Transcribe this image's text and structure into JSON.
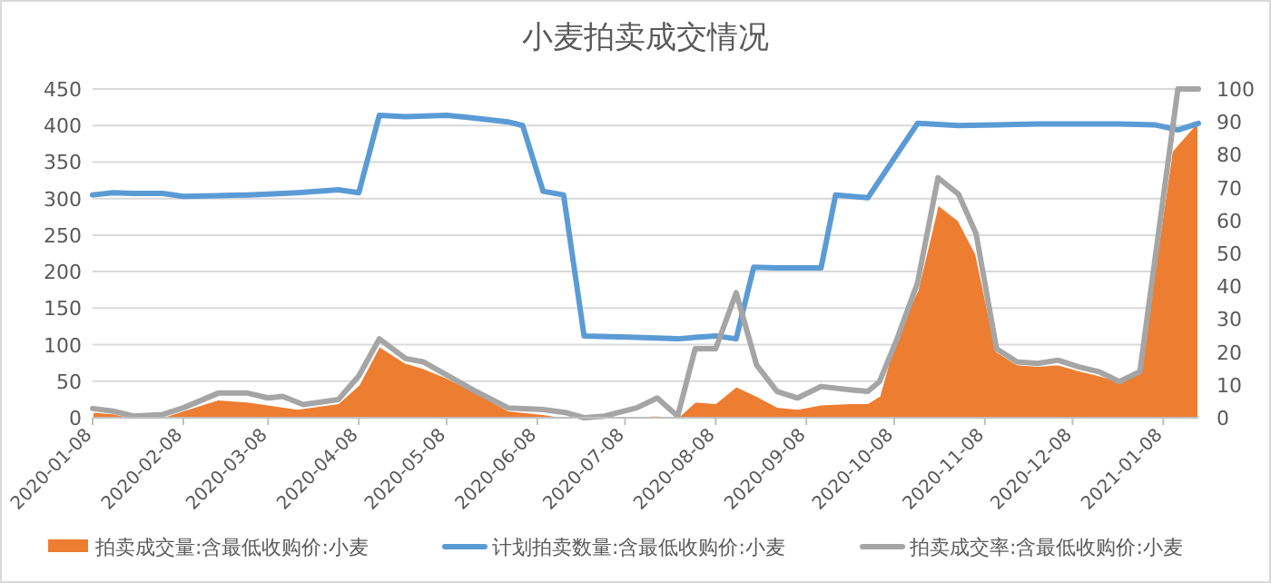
{
  "chart_data": {
    "type": "line",
    "title": "小麦拍卖成交情况",
    "xlim": [
      "2020-01-08",
      "2021-01-20"
    ],
    "xticks": [
      "2020-01-08",
      "2020-02-08",
      "2020-03-08",
      "2020-04-08",
      "2020-05-08",
      "2020-06-08",
      "2020-07-08",
      "2020-08-08",
      "2020-09-08",
      "2020-10-08",
      "2020-11-08",
      "2020-12-08",
      "2021-01-08"
    ],
    "ylim": [
      0,
      450
    ],
    "yticks": [
      0,
      50,
      100,
      150,
      200,
      250,
      300,
      350,
      400,
      450
    ],
    "y2lim": [
      0,
      100
    ],
    "y2ticks": [
      0,
      10,
      20,
      30,
      40,
      50,
      60,
      70,
      80,
      90,
      100
    ],
    "grid": "y",
    "legend": "bottom",
    "series": [
      {
        "name": "拍卖成交量:含最低收购价:小麦",
        "type": "area",
        "color": "#ed7d31",
        "x": [
          "2020-01-08",
          "2020-01-15",
          "2020-01-22",
          "2020-02-01",
          "2020-02-08",
          "2020-02-20",
          "2020-03-01",
          "2020-03-08",
          "2020-03-18",
          "2020-04-01",
          "2020-04-08",
          "2020-04-15",
          "2020-04-24",
          "2020-04-30",
          "2020-05-08",
          "2020-05-18",
          "2020-05-29",
          "2020-06-10",
          "2020-06-18",
          "2020-07-01",
          "2020-07-12",
          "2020-07-19",
          "2020-07-26",
          "2020-08-01",
          "2020-08-08",
          "2020-08-15",
          "2020-08-22",
          "2020-08-29",
          "2020-09-05",
          "2020-09-13",
          "2020-09-23",
          "2020-09-29",
          "2020-10-03",
          "2020-10-09",
          "2020-10-16",
          "2020-10-23",
          "2020-10-30",
          "2020-11-05",
          "2020-11-12",
          "2020-11-19",
          "2020-11-26",
          "2020-12-03",
          "2020-12-10",
          "2020-12-17",
          "2020-12-24",
          "2020-12-31",
          "2021-01-11",
          "2021-01-20"
        ],
        "values": [
          8,
          6,
          0,
          1,
          10,
          25,
          22,
          18,
          12,
          20,
          45,
          98,
          75,
          68,
          55,
          35,
          10,
          5,
          0,
          0,
          2,
          3,
          0,
          22,
          20,
          43,
          30,
          15,
          12,
          18,
          20,
          20,
          30,
          117,
          174,
          292,
          270,
          224,
          91,
          73,
          71,
          73,
          65,
          58,
          50,
          62,
          365,
          406
        ]
      },
      {
        "name": "计划拍卖数量:含最低收购价:小麦",
        "color": "#5b9bd5",
        "x": [
          "2020-01-08",
          "2020-01-15",
          "2020-01-22",
          "2020-02-01",
          "2020-02-08",
          "2020-02-20",
          "2020-03-01",
          "2020-03-08",
          "2020-03-18",
          "2020-04-01",
          "2020-04-08",
          "2020-04-15",
          "2020-04-24",
          "2020-05-08",
          "2020-05-18",
          "2020-05-29",
          "2020-06-03",
          "2020-06-10",
          "2020-06-17",
          "2020-06-24",
          "2020-07-12",
          "2020-07-26",
          "2020-08-01",
          "2020-08-08",
          "2020-08-15",
          "2020-08-21",
          "2020-08-29",
          "2020-09-13",
          "2020-09-18",
          "2020-09-29",
          "2020-10-16",
          "2020-10-30",
          "2020-11-12",
          "2020-11-26",
          "2020-12-10",
          "2020-12-24",
          "2021-01-05",
          "2021-01-13",
          "2021-01-20"
        ],
        "values": [
          305,
          308,
          307,
          307,
          303,
          304,
          305,
          306,
          308,
          312,
          308,
          414,
          412,
          414,
          410,
          405,
          400,
          310,
          305,
          112,
          110,
          108,
          110,
          112,
          108,
          206,
          205,
          205,
          305,
          301,
          403,
          400,
          401,
          402,
          402,
          402,
          401,
          394,
          403
        ]
      },
      {
        "name": "拍卖成交率:含最低收购价:小麦",
        "color": "#a5a5a5",
        "axis": "y2",
        "x": [
          "2020-01-08",
          "2020-01-15",
          "2020-01-22",
          "2020-02-01",
          "2020-02-08",
          "2020-02-20",
          "2020-03-01",
          "2020-03-08",
          "2020-03-13",
          "2020-03-20",
          "2020-04-01",
          "2020-04-08",
          "2020-04-15",
          "2020-04-24",
          "2020-04-30",
          "2020-05-08",
          "2020-05-18",
          "2020-05-29",
          "2020-06-10",
          "2020-06-18",
          "2020-06-24",
          "2020-07-01",
          "2020-07-12",
          "2020-07-19",
          "2020-07-26",
          "2020-08-01",
          "2020-08-08",
          "2020-08-15",
          "2020-08-22",
          "2020-08-29",
          "2020-09-05",
          "2020-09-13",
          "2020-09-23",
          "2020-09-29",
          "2020-10-03",
          "2020-10-09",
          "2020-10-16",
          "2020-10-23",
          "2020-10-30",
          "2020-11-05",
          "2020-11-12",
          "2020-11-19",
          "2020-11-26",
          "2020-12-03",
          "2020-12-10",
          "2020-12-17",
          "2020-12-24",
          "2020-12-31",
          "2021-01-13",
          "2021-01-20"
        ],
        "values": [
          2.8,
          2,
          0.5,
          1,
          3,
          7.5,
          7.5,
          6,
          6.5,
          4,
          5.5,
          12.7,
          24,
          18,
          17,
          13,
          8,
          3,
          2.5,
          1.5,
          0,
          0.5,
          3,
          6,
          0.5,
          21,
          21,
          38,
          16,
          8,
          6,
          9.5,
          8.5,
          8,
          11,
          24,
          41,
          73,
          68,
          56,
          21,
          17,
          16.5,
          17.5,
          15.5,
          14,
          11,
          14,
          100,
          100
        ]
      }
    ]
  }
}
